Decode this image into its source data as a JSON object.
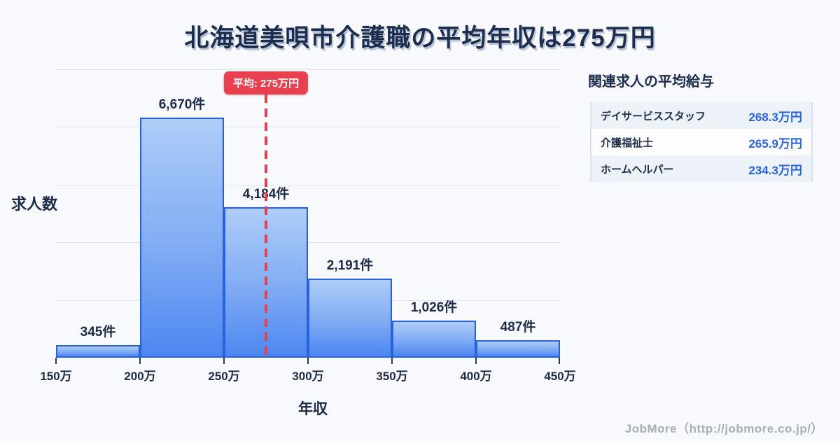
{
  "title": "北海道美唄市介護職の平均年収は275万円",
  "chart_data": {
    "type": "bar",
    "title": "北海道美唄市介護職の平均年収は275万円",
    "xlabel": "年収",
    "ylabel": "求人数",
    "bin_edge_labels": [
      "150万",
      "200万",
      "250万",
      "300万",
      "350万",
      "400万",
      "450万"
    ],
    "categories": [
      "150万-200万",
      "200万-250万",
      "250万-300万",
      "300万-350万",
      "350万-400万",
      "400万-450万"
    ],
    "values": [
      345,
      6670,
      4184,
      2191,
      1026,
      487
    ],
    "bar_labels": [
      "345件",
      "6,670件",
      "4,184件",
      "2,191件",
      "1,026件",
      "487件"
    ],
    "average_line": {
      "value_man_yen": 275,
      "label": "平均: 275万円"
    },
    "x_range_man_yen": [
      150,
      450
    ],
    "ylim": [
      0,
      8000
    ],
    "grid": true,
    "legend": null,
    "colors": {
      "bar_fill_top": "#aecdf8",
      "bar_fill_bottom": "#4c86f0",
      "bar_border": "#2761db",
      "average_red": "#e6404d",
      "text_dark": "#1d2d4f",
      "background": "#f7f9fc",
      "gridline": "#dde4f1"
    }
  },
  "panel": {
    "heading": "関連求人の平均給与",
    "rows": [
      {
        "label": "デイサービススタッフ",
        "value": "268.3万円"
      },
      {
        "label": "介護福祉士",
        "value": "265.9万円"
      },
      {
        "label": "ホームヘルパー",
        "value": "234.3万円"
      }
    ]
  },
  "footer": {
    "credit": "JobMore（http://jobmore.co.jp/）"
  }
}
